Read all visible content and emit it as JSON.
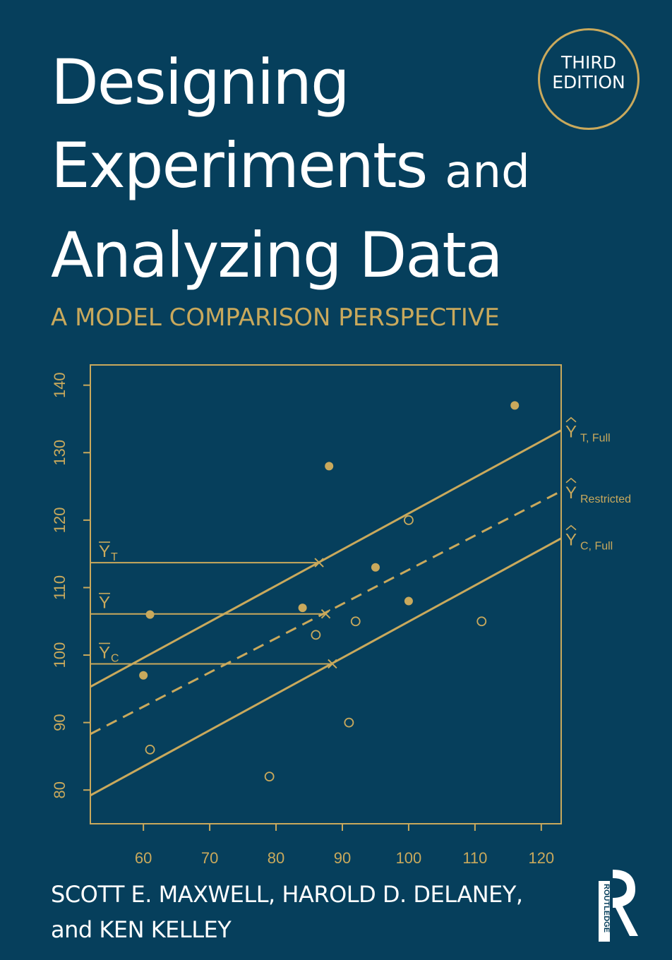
{
  "cover": {
    "title_line1": "Designing",
    "title_line2a": "Experiments",
    "title_line2b": "and",
    "title_line3": "Analyzing Data",
    "subtitle": "A MODEL COMPARISON PERSPECTIVE",
    "edition_line1": "THIRD",
    "edition_line2": "EDITION",
    "authors_line1": "SCOTT E. MAXWELL, HAROLD D. DELANEY,",
    "authors_line2": "and KEN KELLEY",
    "publisher": "ROUTLEDGE"
  },
  "colors": {
    "background": "#063f5c",
    "gold": "#c9a95c",
    "white": "#ffffff"
  },
  "chart_data": {
    "type": "scatter",
    "xlim": [
      52,
      123
    ],
    "ylim": [
      75,
      143
    ],
    "x_ticks": [
      60,
      70,
      80,
      90,
      100,
      110,
      120
    ],
    "y_ticks": [
      80,
      90,
      100,
      110,
      120,
      130,
      140
    ],
    "filled_points": [
      [
        60,
        97
      ],
      [
        61,
        106
      ],
      [
        84,
        107
      ],
      [
        88,
        128
      ],
      [
        95,
        113
      ],
      [
        100,
        108
      ],
      [
        116,
        137
      ]
    ],
    "open_points": [
      [
        61,
        86
      ],
      [
        79,
        82
      ],
      [
        86,
        103
      ],
      [
        91,
        90
      ],
      [
        92,
        105
      ],
      [
        100,
        120
      ],
      [
        111,
        105
      ]
    ],
    "lines": [
      {
        "label_main": "Y",
        "label_sub": "T, Full",
        "style": "solid",
        "x": [
          52,
          123
        ],
        "y": [
          95.3,
          133.3
        ]
      },
      {
        "label_main": "Y",
        "label_sub": "Restricted",
        "style": "dashed",
        "x": [
          52,
          123
        ],
        "y": [
          88.3,
          124.3
        ]
      },
      {
        "label_main": "Y",
        "label_sub": "C, Full",
        "style": "solid",
        "x": [
          52,
          123
        ],
        "y": [
          79.2,
          117.3
        ]
      }
    ],
    "means": [
      {
        "label_main": "Y",
        "label_sub": "T",
        "y": 113.7,
        "x_end": 86.5
      },
      {
        "label_main": "Y",
        "label_sub": "",
        "y": 106.1,
        "x_end": 87.5
      },
      {
        "label_main": "Y",
        "label_sub": "C",
        "y": 98.7,
        "x_end": 88.5
      }
    ]
  }
}
